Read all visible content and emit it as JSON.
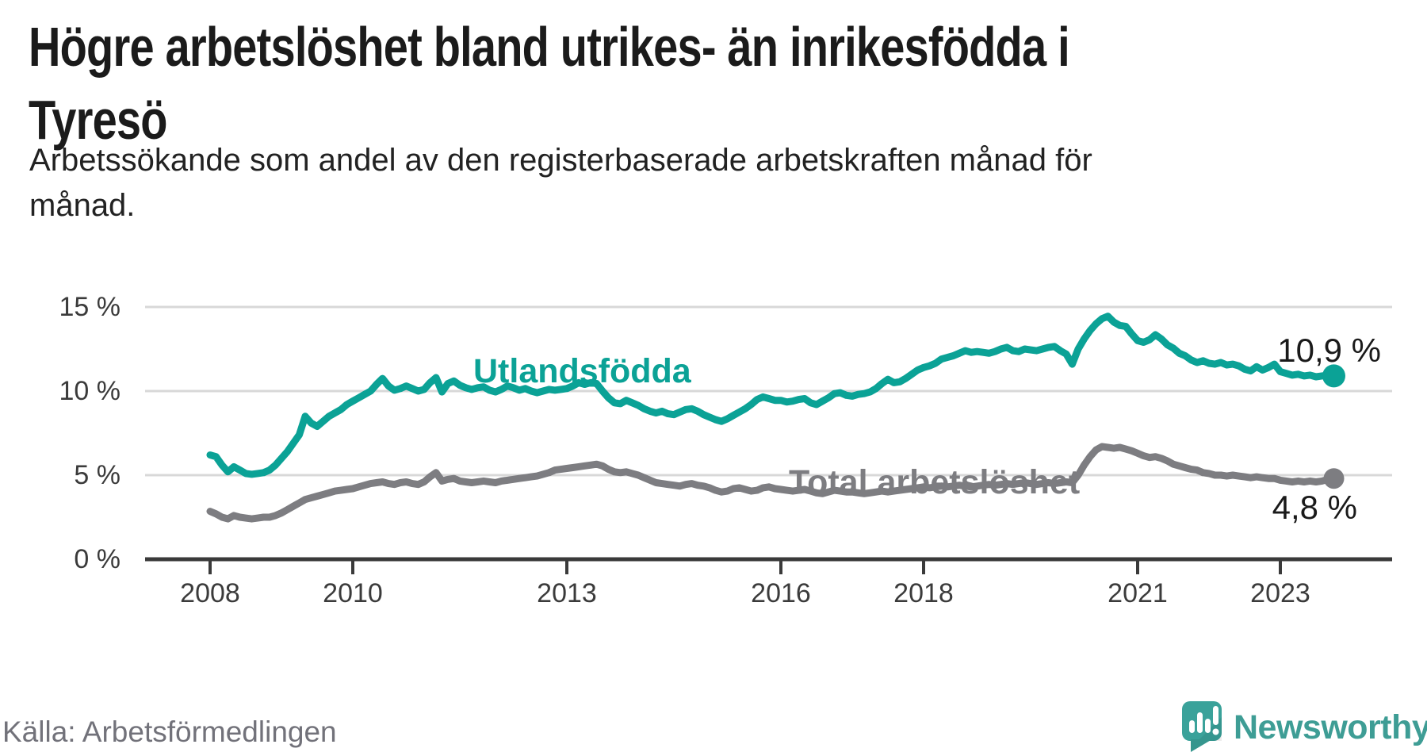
{
  "header": {
    "title": "Högre arbetslöshet bland utrikes- än inrikesfödda i\nTyresö",
    "subtitle": "Arbetssökande som andel av den registerbaserade arbetskraften månad för\nmånad."
  },
  "chart_data": {
    "type": "line",
    "unit": "%",
    "x_start": "2008-01",
    "x_end": "2023-10",
    "x_ticks": [
      "2008",
      "2010",
      "2013",
      "2016",
      "2018",
      "2021",
      "2023"
    ],
    "x_tick_years": [
      2008,
      2010,
      2013,
      2016,
      2018,
      2021,
      2023
    ],
    "y_ticks": [
      {
        "value": 0,
        "label": "0 %"
      },
      {
        "value": 5,
        "label": "5 %"
      },
      {
        "value": 10,
        "label": "10 %"
      },
      {
        "value": 15,
        "label": "15 %"
      }
    ],
    "ylim": [
      0,
      15.9
    ],
    "grid": "horizontal",
    "legend_position": "inline-labels",
    "series": [
      {
        "name": "Utlandsfödda",
        "color": "#0ba296",
        "end_label": "10,9 %",
        "end_value": 10.9,
        "values": [
          6.2,
          6.1,
          5.6,
          5.2,
          5.5,
          5.3,
          5.1,
          5.05,
          5.1,
          5.15,
          5.3,
          5.6,
          6.0,
          6.4,
          6.9,
          7.4,
          8.5,
          8.1,
          7.9,
          8.2,
          8.5,
          8.7,
          8.9,
          9.2,
          9.4,
          9.6,
          9.8,
          10.0,
          10.4,
          10.75,
          10.3,
          10.05,
          10.15,
          10.3,
          10.15,
          10.0,
          10.1,
          10.5,
          10.8,
          9.95,
          10.45,
          10.6,
          10.35,
          10.2,
          10.1,
          10.2,
          10.25,
          10.05,
          9.95,
          10.1,
          10.3,
          10.2,
          10.05,
          10.15,
          10.0,
          9.9,
          10.0,
          10.1,
          10.05,
          10.1,
          10.15,
          10.3,
          10.5,
          10.4,
          10.5,
          10.45,
          10.0,
          9.6,
          9.3,
          9.25,
          9.45,
          9.3,
          9.15,
          8.95,
          8.8,
          8.7,
          8.8,
          8.65,
          8.6,
          8.75,
          8.9,
          8.95,
          8.8,
          8.6,
          8.45,
          8.3,
          8.2,
          8.35,
          8.55,
          8.75,
          8.95,
          9.2,
          9.5,
          9.65,
          9.55,
          9.45,
          9.45,
          9.35,
          9.4,
          9.5,
          9.55,
          9.3,
          9.2,
          9.4,
          9.6,
          9.85,
          9.9,
          9.75,
          9.7,
          9.8,
          9.85,
          9.95,
          10.15,
          10.45,
          10.7,
          10.5,
          10.55,
          10.75,
          11.0,
          11.25,
          11.4,
          11.5,
          11.65,
          11.9,
          12.0,
          12.1,
          12.25,
          12.4,
          12.3,
          12.35,
          12.3,
          12.25,
          12.35,
          12.5,
          12.6,
          12.4,
          12.35,
          12.5,
          12.45,
          12.4,
          12.5,
          12.6,
          12.65,
          12.4,
          12.2,
          11.6,
          12.5,
          13.1,
          13.6,
          14.0,
          14.3,
          14.45,
          14.1,
          13.9,
          13.85,
          13.4,
          13.0,
          12.9,
          13.05,
          13.35,
          13.1,
          12.75,
          12.55,
          12.25,
          12.1,
          11.85,
          11.7,
          11.8,
          11.65,
          11.6,
          11.7,
          11.55,
          11.6,
          11.5,
          11.3,
          11.2,
          11.45,
          11.25,
          11.4,
          11.6,
          11.15,
          11.05,
          10.95,
          11.0,
          10.9,
          10.95,
          10.85,
          10.9,
          10.95,
          10.9
        ]
      },
      {
        "name": "Total arbetslöshet",
        "color": "#7d7d81",
        "end_label": "4,8 %",
        "end_value": 4.8,
        "values": [
          2.85,
          2.7,
          2.5,
          2.4,
          2.6,
          2.5,
          2.45,
          2.4,
          2.45,
          2.5,
          2.5,
          2.6,
          2.75,
          2.95,
          3.15,
          3.35,
          3.55,
          3.65,
          3.75,
          3.85,
          3.95,
          4.05,
          4.1,
          4.15,
          4.2,
          4.3,
          4.4,
          4.5,
          4.55,
          4.6,
          4.5,
          4.45,
          4.55,
          4.6,
          4.5,
          4.45,
          4.6,
          4.9,
          5.15,
          4.65,
          4.75,
          4.8,
          4.65,
          4.6,
          4.55,
          4.6,
          4.65,
          4.6,
          4.55,
          4.65,
          4.7,
          4.75,
          4.8,
          4.85,
          4.9,
          4.95,
          5.05,
          5.15,
          5.3,
          5.35,
          5.4,
          5.45,
          5.5,
          5.55,
          5.6,
          5.65,
          5.55,
          5.35,
          5.2,
          5.15,
          5.2,
          5.1,
          5.0,
          4.85,
          4.7,
          4.55,
          4.5,
          4.45,
          4.4,
          4.35,
          4.45,
          4.5,
          4.4,
          4.35,
          4.25,
          4.1,
          4.0,
          4.05,
          4.2,
          4.25,
          4.15,
          4.05,
          4.1,
          4.25,
          4.3,
          4.2,
          4.15,
          4.1,
          4.05,
          4.1,
          4.15,
          4.05,
          3.95,
          3.9,
          4.0,
          4.1,
          4.05,
          4.0,
          4.0,
          3.95,
          3.9,
          3.95,
          4.0,
          4.05,
          4.0,
          4.05,
          4.1,
          4.15,
          4.2,
          4.25,
          4.3,
          4.25,
          4.3,
          4.35,
          4.3,
          4.35,
          4.4,
          4.35,
          4.3,
          4.35,
          4.4,
          4.45,
          4.4,
          4.45,
          4.5,
          4.45,
          4.5,
          4.55,
          4.5,
          4.45,
          4.5,
          4.55,
          4.5,
          4.55,
          4.6,
          4.55,
          5.0,
          5.6,
          6.1,
          6.5,
          6.7,
          6.65,
          6.6,
          6.65,
          6.55,
          6.45,
          6.3,
          6.15,
          6.05,
          6.1,
          6.0,
          5.85,
          5.65,
          5.55,
          5.45,
          5.35,
          5.3,
          5.15,
          5.1,
          5.0,
          5.0,
          4.95,
          5.0,
          4.95,
          4.9,
          4.85,
          4.9,
          4.85,
          4.8,
          4.8,
          4.7,
          4.65,
          4.6,
          4.65,
          4.6,
          4.65,
          4.6,
          4.65,
          4.75,
          4.8
        ]
      }
    ]
  },
  "footer": {
    "source": "Källa: Arbetsförmedlingen",
    "brand": "Newsworthy"
  },
  "colors": {
    "accent_teal": "#0ba296",
    "line_gray": "#7d7d81",
    "axis": "#3a3a3a",
    "gridline": "#d8d8d8",
    "title_text": "#1b1b1b",
    "source_text": "#72727a",
    "brand_teal": "#3e9d95"
  }
}
